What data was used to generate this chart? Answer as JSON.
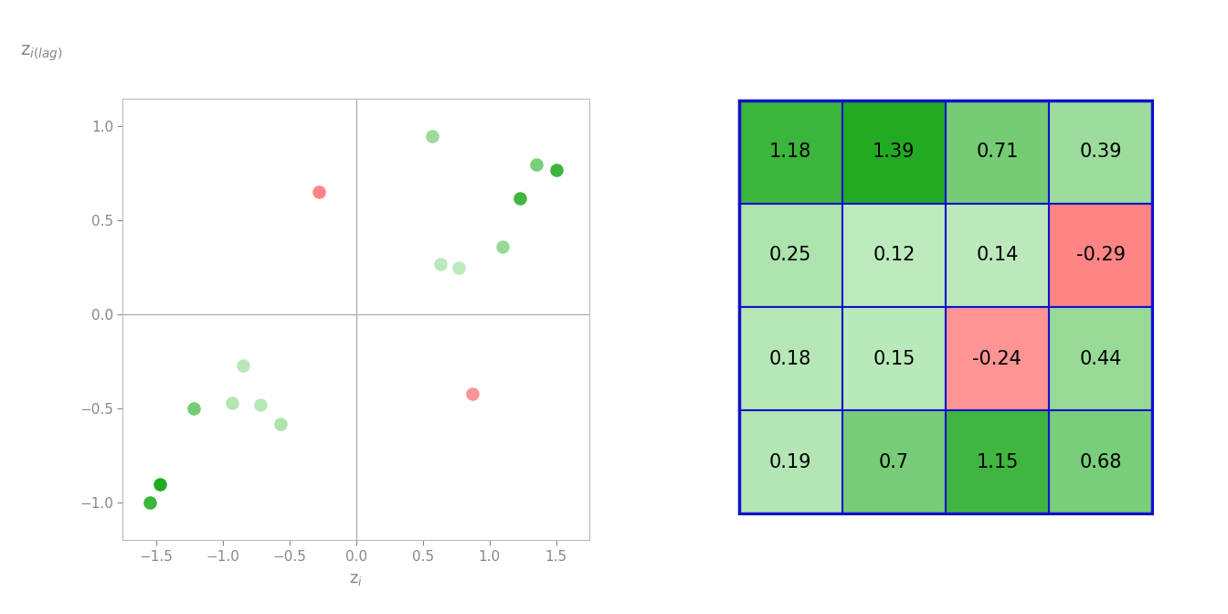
{
  "grid_values": [
    [
      1.18,
      1.39,
      0.71,
      0.39
    ],
    [
      0.25,
      0.12,
      0.14,
      -0.29
    ],
    [
      0.18,
      0.15,
      -0.24,
      0.44
    ],
    [
      0.19,
      0.7,
      1.15,
      0.68
    ]
  ],
  "scatter_points": [
    [
      -1.55,
      -1.0,
      1.18
    ],
    [
      -1.47,
      -0.9,
      1.39
    ],
    [
      -1.22,
      -0.5,
      0.71
    ],
    [
      -0.93,
      -0.47,
      0.19
    ],
    [
      -0.85,
      -0.27,
      0.15
    ],
    [
      -0.72,
      -0.48,
      0.18
    ],
    [
      -0.57,
      -0.58,
      0.25
    ],
    [
      -0.28,
      0.65,
      -0.29
    ],
    [
      0.57,
      0.95,
      0.39
    ],
    [
      0.63,
      0.27,
      0.14
    ],
    [
      0.77,
      0.25,
      0.12
    ],
    [
      0.87,
      -0.42,
      -0.24
    ],
    [
      1.1,
      0.36,
      0.44
    ],
    [
      1.23,
      0.62,
      1.15
    ],
    [
      1.35,
      0.8,
      0.68
    ],
    [
      1.5,
      0.77,
      1.18
    ]
  ],
  "xlabel": "z$_i$",
  "ylabel": "z$_{i(lag)}$",
  "vmin": -0.3,
  "vmax": 1.4,
  "scatter_size": 110,
  "axis_color": "#888888",
  "tick_label_color": "#888888",
  "tick_fontsize": 11,
  "label_fontsize": 13,
  "ylabel_fontsize": 14,
  "grid_border_color": "#1111cc",
  "grid_text_color": "#000000",
  "grid_fontsize": 15
}
